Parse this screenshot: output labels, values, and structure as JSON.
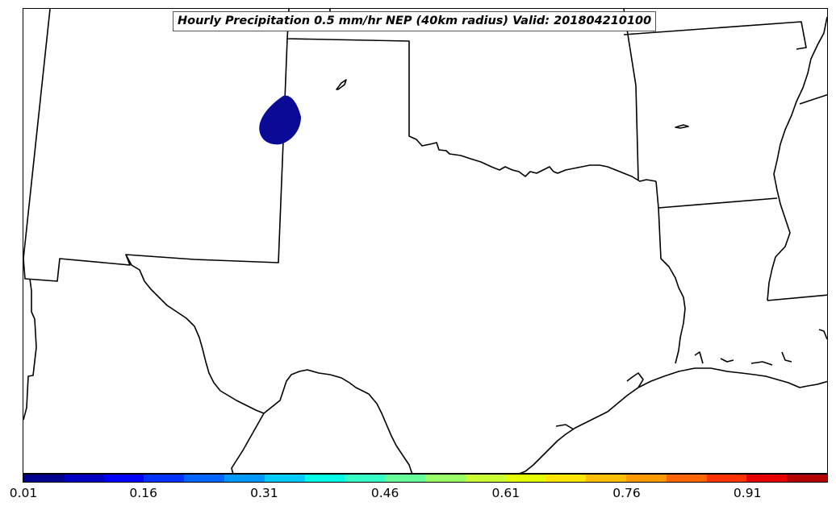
{
  "title": "Hourly Precipitation 0.5 mm/hr NEP (40km radius) Valid: 201804210100",
  "map": {
    "precip_blob_color": "#0a0a96",
    "boundary_color": "#000000",
    "background_color": "#ffffff"
  },
  "colorbar": {
    "colors": [
      "#00008f",
      "#0000c4",
      "#0000ff",
      "#0033ff",
      "#0066ff",
      "#0099ff",
      "#00ccff",
      "#00ffe6",
      "#33ffc7",
      "#66ff99",
      "#99ff66",
      "#ccff33",
      "#e6ff00",
      "#ffe600",
      "#ffbf00",
      "#ff9900",
      "#ff6600",
      "#ff3300",
      "#e60000",
      "#b30000"
    ],
    "tick_labels": [
      "0.01",
      "0.16",
      "0.31",
      "0.46",
      "0.61",
      "0.76",
      "0.91"
    ]
  }
}
